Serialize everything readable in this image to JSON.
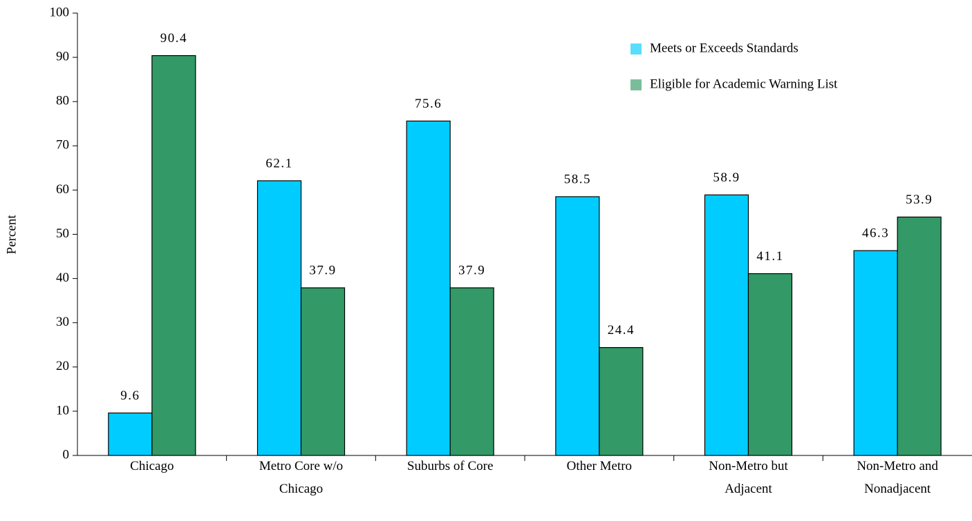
{
  "chart_data": {
    "type": "bar",
    "y_label": "Percent",
    "categories": [
      "Chicago",
      "Metro Core w/o Chicago",
      "Suburbs of Core",
      "Other Metro",
      "Non-Metro but Adjacent",
      "Non-Metro and Nonadjacent"
    ],
    "series": [
      {
        "name": "Meets or Exceeds Standards",
        "color": "#00ccff",
        "values": [
          9.6,
          62.1,
          75.6,
          58.5,
          58.9,
          46.3
        ]
      },
      {
        "name": "Eligible for Academic Warning List",
        "color": "#339966",
        "values": [
          90.4,
          37.9,
          37.9,
          24.4,
          41.1,
          53.9
        ]
      }
    ],
    "ylim": [
      0,
      100
    ],
    "yticks": [
      0,
      10,
      20,
      30,
      40,
      50,
      60,
      70,
      80,
      90,
      100
    ],
    "grid": false,
    "legend": "top-right"
  }
}
